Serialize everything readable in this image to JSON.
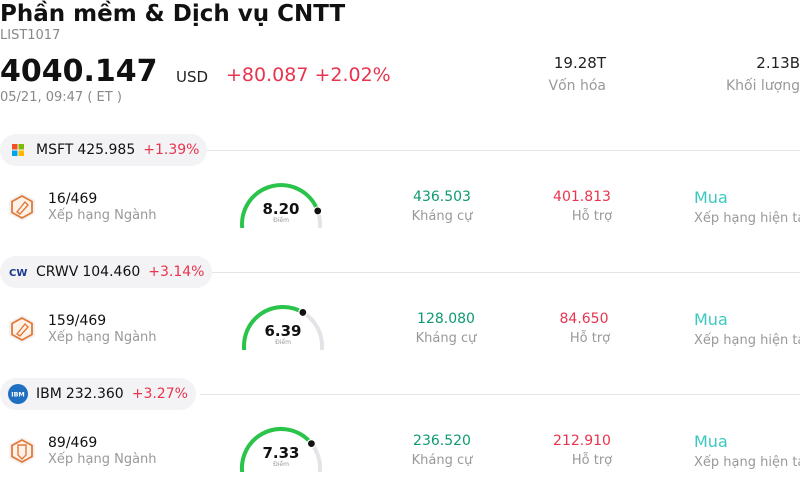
{
  "header": {
    "title": "Phần mềm & Dịch vụ CNTT",
    "code": "LIST1017",
    "price": "4040.147",
    "currency": "USD",
    "change": "+80.087 +2.02%",
    "time": "05/21, 09:47 ( ET )",
    "market_cap_value": "19.28T",
    "market_cap_label": "Vốn hóa",
    "volume_value": "2.13B",
    "volume_label": "Khối lượng"
  },
  "colors": {
    "up": "#e8344e",
    "resistance": "#0e9a73",
    "buy": "#3cc8c0",
    "gauge": "#2bc44a"
  },
  "stocks": [
    {
      "symbol": "MSFT",
      "price": "425.985",
      "change": "+1.39%",
      "logo": "microsoft-logo",
      "rank": "16/469",
      "rank_label": "Xếp hạng Ngành",
      "score": "8.20",
      "score_label": "Điểm",
      "score_fraction": 0.82,
      "resistance": "436.503",
      "resistance_label": "Kháng cự",
      "support": "401.813",
      "support_label": "Hỗ trợ",
      "rating": "Mua",
      "rating_label": "Xếp hạng hiện tại"
    },
    {
      "symbol": "CRWV",
      "price": "104.460",
      "change": "+3.14%",
      "logo": "coreweave-logo",
      "rank": "159/469",
      "rank_label": "Xếp hạng Ngành",
      "score": "6.39",
      "score_label": "Điểm",
      "score_fraction": 0.639,
      "resistance": "128.080",
      "resistance_label": "Kháng cự",
      "support": "84.650",
      "support_label": "Hỗ trợ",
      "rating": "Mua",
      "rating_label": "Xếp hạng hiện tại"
    },
    {
      "symbol": "IBM",
      "price": "232.360",
      "change": "+3.27%",
      "logo": "ibm-logo",
      "rank": "89/469",
      "rank_label": "Xếp hạng Ngành",
      "score": "7.33",
      "score_label": "Điểm",
      "score_fraction": 0.733,
      "resistance": "236.520",
      "resistance_label": "Kháng cự",
      "support": "212.910",
      "support_label": "Hỗ trợ",
      "rating": "Mua",
      "rating_label": "Xếp hạng hiện tại"
    }
  ]
}
